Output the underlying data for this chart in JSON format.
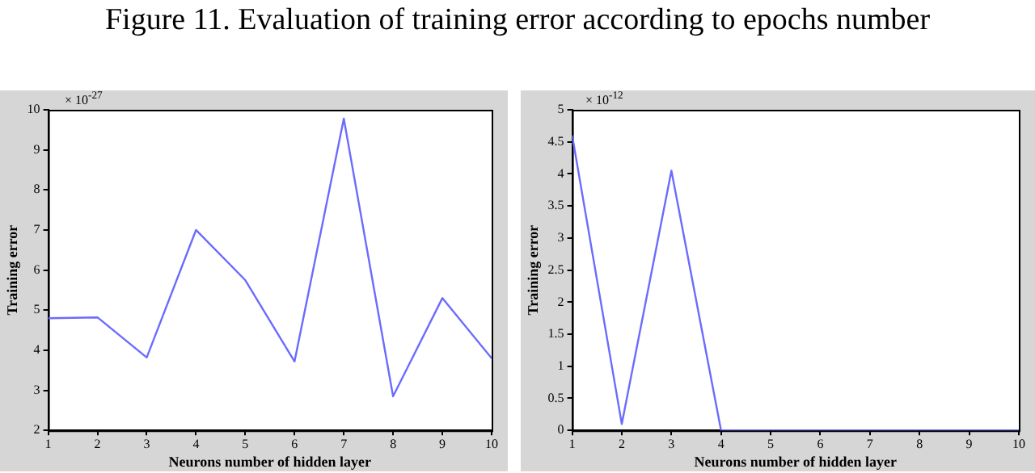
{
  "chart_data": [
    {
      "type": "line",
      "title": "Figure 11. Evaluation of training error according to epochs number",
      "xlabel": "Neurons number of hidden layer",
      "ylabel": "Training error",
      "annotations": [
        "× 10$^{-27}$"
      ],
      "x": [
        1,
        2,
        3,
        4,
        5,
        6,
        7,
        8,
        9,
        10
      ],
      "series": [
        {
          "color": "#6b6bff",
          "values": [
            4.8,
            4.82,
            3.82,
            7.0,
            5.75,
            3.72,
            9.78,
            2.85,
            5.3,
            3.8
          ]
        }
      ],
      "xlim": [
        1,
        10
      ],
      "xticks": [
        1,
        2,
        3,
        4,
        5,
        6,
        7,
        8,
        9,
        10
      ],
      "ylim": [
        2,
        10
      ],
      "yticks": [
        2,
        3,
        4,
        5,
        6,
        7,
        8,
        9,
        10
      ],
      "grid": false,
      "legend": false,
      "marker": "none"
    },
    {
      "type": "line",
      "xlabel": "Neurons number of hidden layer",
      "ylabel": "Training error",
      "annotations": [
        "× 10$^{-12}$"
      ],
      "x": [
        1,
        2,
        3,
        4,
        5,
        6,
        7,
        8,
        9,
        10
      ],
      "series": [
        {
          "color": "#6b6bff",
          "values": [
            4.6,
            0.1,
            4.05,
            0,
            0,
            0,
            0,
            0,
            0,
            0
          ]
        }
      ],
      "xlim": [
        1,
        10
      ],
      "xticks": [
        1,
        2,
        3,
        4,
        5,
        6,
        7,
        8,
        9,
        10
      ],
      "ylim": [
        0,
        5
      ],
      "yticks": [
        0,
        0.5,
        1,
        1.5,
        2,
        2.5,
        3,
        3.5,
        4,
        4.5,
        5
      ],
      "grid": false,
      "legend": false,
      "marker": "none"
    }
  ]
}
